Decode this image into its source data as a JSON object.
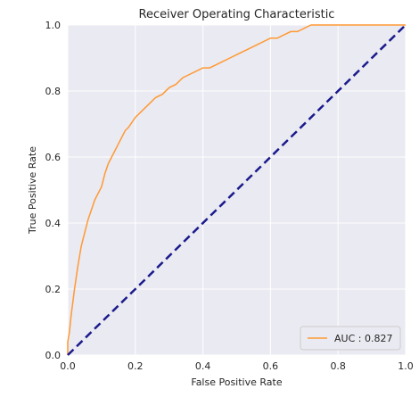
{
  "chart_data": {
    "type": "line",
    "title": "Receiver Operating Characteristic",
    "xlabel": "False Positive Rate",
    "ylabel": "True Positive Rate",
    "xlim": [
      0.0,
      1.0
    ],
    "ylim": [
      0.0,
      1.0
    ],
    "grid": true,
    "legend_position": "bottom-right",
    "xticks": [
      "0.0",
      "0.2",
      "0.4",
      "0.6",
      "0.8",
      "1.0"
    ],
    "yticks": [
      "0.0",
      "0.2",
      "0.4",
      "0.6",
      "0.8",
      "1.0"
    ],
    "series": [
      {
        "name": "AUC : 0.827",
        "color": "#ff9933",
        "x": [
          0.0,
          0.0,
          0.005,
          0.01,
          0.02,
          0.03,
          0.04,
          0.05,
          0.06,
          0.07,
          0.08,
          0.09,
          0.1,
          0.11,
          0.12,
          0.13,
          0.14,
          0.15,
          0.16,
          0.17,
          0.18,
          0.2,
          0.22,
          0.24,
          0.26,
          0.28,
          0.3,
          0.32,
          0.34,
          0.36,
          0.38,
          0.4,
          0.42,
          0.44,
          0.46,
          0.48,
          0.5,
          0.52,
          0.54,
          0.56,
          0.58,
          0.6,
          0.62,
          0.64,
          0.66,
          0.68,
          0.7,
          0.72,
          0.75,
          0.8,
          0.85,
          0.9,
          0.95,
          1.0
        ],
        "y": [
          0.0,
          0.04,
          0.07,
          0.12,
          0.2,
          0.27,
          0.33,
          0.37,
          0.41,
          0.44,
          0.47,
          0.49,
          0.51,
          0.55,
          0.58,
          0.6,
          0.62,
          0.64,
          0.66,
          0.68,
          0.69,
          0.72,
          0.74,
          0.76,
          0.78,
          0.79,
          0.81,
          0.82,
          0.84,
          0.85,
          0.86,
          0.87,
          0.87,
          0.88,
          0.89,
          0.9,
          0.91,
          0.92,
          0.93,
          0.94,
          0.95,
          0.96,
          0.96,
          0.97,
          0.98,
          0.98,
          0.99,
          1.0,
          1.0,
          1.0,
          1.0,
          1.0,
          1.0,
          1.0
        ]
      },
      {
        "name": "",
        "color": "#1a1a8c",
        "style": "dashed",
        "x": [
          0.0,
          1.0
        ],
        "y": [
          0.0,
          1.0
        ]
      }
    ]
  }
}
